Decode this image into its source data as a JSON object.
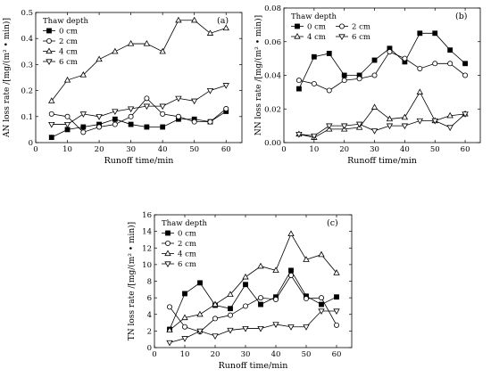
{
  "chart_data": [
    {
      "type": "line",
      "panel_label": "(a)",
      "xlabel": "Runoff time/min",
      "ylabel": "AN loss rate /[mg/(m² • min)]",
      "xlim": [
        0,
        65
      ],
      "ylim": [
        0,
        0.5
      ],
      "xticks": [
        "0",
        "10",
        "20",
        "30",
        "40",
        "50",
        "60"
      ],
      "yticks": [
        "0",
        "0.1",
        "0.2",
        "0.3",
        "0.4",
        "0.5"
      ],
      "legend_title": "Thaw depth",
      "legend_position": "top-left",
      "grid": false,
      "x": [
        5,
        10,
        15,
        20,
        25,
        30,
        35,
        40,
        45,
        50,
        55,
        60
      ],
      "series": [
        {
          "name": "0 cm",
          "marker": "square-filled",
          "values": [
            0.02,
            0.05,
            0.06,
            0.07,
            0.09,
            0.07,
            0.06,
            0.06,
            0.09,
            0.09,
            0.08,
            0.12
          ]
        },
        {
          "name": "2 cm",
          "marker": "circle-open",
          "values": [
            0.11,
            0.1,
            0.04,
            0.06,
            0.07,
            0.1,
            0.17,
            0.11,
            0.1,
            0.08,
            0.08,
            0.13
          ]
        },
        {
          "name": "4 cm",
          "marker": "triangle-up-open",
          "values": [
            0.16,
            0.24,
            0.26,
            0.32,
            0.35,
            0.38,
            0.38,
            0.35,
            0.47,
            0.47,
            0.42,
            0.44
          ]
        },
        {
          "name": "6 cm",
          "marker": "triangle-down-open",
          "values": [
            0.07,
            0.07,
            0.11,
            0.1,
            0.12,
            0.13,
            0.14,
            0.14,
            0.17,
            0.16,
            0.2,
            0.22
          ]
        }
      ]
    },
    {
      "type": "line",
      "panel_label": "(b)",
      "xlabel": "Runoff time/min",
      "ylabel": "NN loss rate /[mg/(m² • min)]",
      "xlim": [
        0,
        65
      ],
      "ylim": [
        0,
        0.08
      ],
      "xticks": [
        "0",
        "10",
        "20",
        "30",
        "40",
        "50",
        "60"
      ],
      "yticks": [
        "0.00",
        "0.02",
        "0.04",
        "0.06",
        "0.08"
      ],
      "legend_title": "Thaw depth",
      "legend_position": "top",
      "grid": false,
      "x": [
        5,
        10,
        15,
        20,
        25,
        30,
        35,
        40,
        45,
        50,
        55,
        60
      ],
      "series": [
        {
          "name": "0 cm",
          "marker": "square-filled",
          "values": [
            0.032,
            0.051,
            0.053,
            0.04,
            0.04,
            0.049,
            0.056,
            0.048,
            0.065,
            0.065,
            0.055,
            0.047
          ]
        },
        {
          "name": "2 cm",
          "marker": "circle-open",
          "values": [
            0.037,
            0.035,
            0.031,
            0.037,
            0.038,
            0.04,
            0.054,
            0.05,
            0.044,
            0.047,
            0.047,
            0.04
          ]
        },
        {
          "name": "4 cm",
          "marker": "triangle-up-open",
          "values": [
            0.005,
            0.003,
            0.008,
            0.008,
            0.009,
            0.021,
            0.014,
            0.015,
            0.03,
            0.013,
            0.016,
            0.017
          ]
        },
        {
          "name": "6 cm",
          "marker": "triangle-down-open",
          "values": [
            0.005,
            0.004,
            0.01,
            0.01,
            0.011,
            0.007,
            0.01,
            0.01,
            0.013,
            0.013,
            0.009,
            0.017
          ]
        }
      ]
    },
    {
      "type": "line",
      "panel_label": "(c)",
      "xlabel": "Runoff time/min",
      "ylabel": "TN loss rate /[mg/(m² • min)]",
      "xlim": [
        0,
        65
      ],
      "ylim": [
        0,
        16
      ],
      "xticks": [
        "0",
        "10",
        "20",
        "30",
        "40",
        "50",
        "60"
      ],
      "yticks": [
        "0",
        "2",
        "4",
        "6",
        "8",
        "10",
        "12",
        "14",
        "16"
      ],
      "legend_title": "Thaw depth",
      "legend_position": "top-left",
      "grid": false,
      "x": [
        5,
        10,
        15,
        20,
        25,
        30,
        35,
        40,
        45,
        50,
        55,
        60
      ],
      "series": [
        {
          "name": "0 cm",
          "marker": "square-filled",
          "values": [
            2.2,
            6.5,
            7.8,
            5.1,
            4.7,
            7.6,
            5.2,
            6.1,
            9.3,
            6.2,
            5.2,
            6.1
          ]
        },
        {
          "name": "2 cm",
          "marker": "circle-open",
          "values": [
            4.9,
            2.5,
            1.9,
            3.5,
            3.9,
            5.0,
            6.0,
            5.8,
            8.7,
            5.9,
            6.0,
            2.7
          ]
        },
        {
          "name": "4 cm",
          "marker": "triangle-up-open",
          "values": [
            2.1,
            3.6,
            4.0,
            5.2,
            6.4,
            8.5,
            9.8,
            9.3,
            13.7,
            10.6,
            11.2,
            9.0
          ]
        },
        {
          "name": "6 cm",
          "marker": "triangle-down-open",
          "values": [
            0.6,
            1.1,
            2.0,
            1.4,
            2.1,
            2.3,
            2.3,
            2.8,
            2.5,
            2.5,
            4.4,
            4.4
          ]
        }
      ]
    }
  ]
}
